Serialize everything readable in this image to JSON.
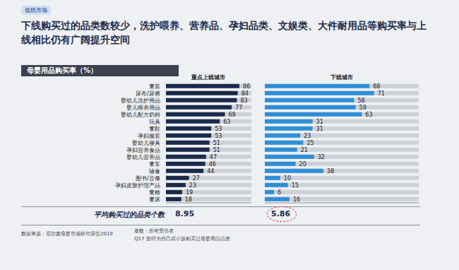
{
  "chart_data": {
    "type": "bar",
    "orientation": "horizontal",
    "title": "下线购买过的品类数较少，洗护喂养、营养品、孕妇品类、文娱类、大件耐用品等购买率与上线相比仍有广阔提升空间",
    "subtitle": "母婴用品购买率（%）",
    "categories": [
      "童装",
      "尿布/尿裤",
      "婴幼儿洗护用品",
      "婴儿喂养用品",
      "婴幼儿配方奶粉",
      "玩具",
      "童鞋",
      "孕妇服装",
      "婴幼儿寝具",
      "孕妇营养食品",
      "婴幼儿营养品",
      "童车",
      "辅食",
      "图书/音像",
      "孕妇皮肤护理产品",
      "童椅",
      "童床"
    ],
    "series": [
      {
        "name": "重点上线城市",
        "color": "#1b2a4a",
        "values": [
          86,
          84,
          83,
          77,
          69,
          63,
          53,
          53,
          51,
          51,
          47,
          46,
          44,
          27,
          23,
          19,
          18
        ]
      },
      {
        "name": "下线城市",
        "color": "#2e8fd6",
        "values": [
          68,
          71,
          58,
          59,
          63,
          31,
          31,
          23,
          25,
          21,
          32,
          20,
          38,
          10,
          15,
          6,
          16
        ]
      }
    ],
    "xlim": [
      0,
      100
    ],
    "data_labels": true,
    "tick_labels": "y",
    "grid": false,
    "summary": {
      "label": "平均购买过的品类个数",
      "values": [
        8.95,
        5.86
      ]
    }
  },
  "slide": {
    "tag": "低线市场",
    "notes": [
      "数据来源：尼尔森母婴市场研究报告2019",
      "基数：所有受访者",
      "Q17 曾经为自己或小孩购买过母婴用品品类"
    ]
  }
}
